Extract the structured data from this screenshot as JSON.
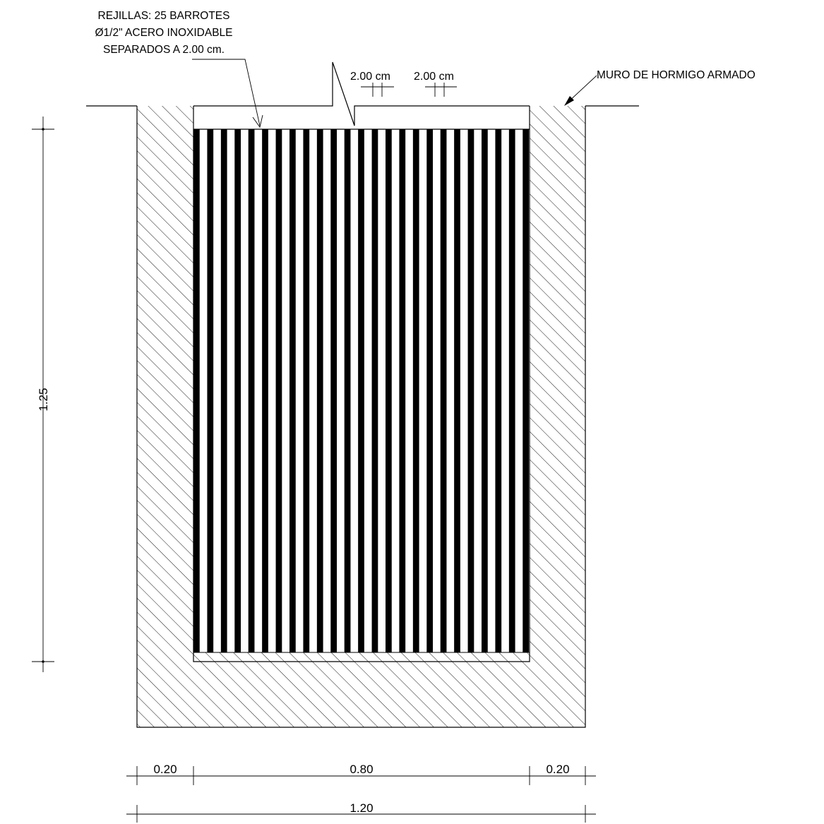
{
  "annotations": {
    "grate_note": [
      "REJILLAS: 25 BARROTES",
      "Ø1/2\" ACERO INOXIDABLE",
      "SEPARADOS A 2.00 cm."
    ],
    "wall_note": "MURO DE HORMIGO ARMADO",
    "spacing_label_1": "2.00 cm",
    "spacing_label_2": "2.00 cm"
  },
  "dimensions": {
    "height": "1.25",
    "left_wall": "0.20",
    "inner_width": "0.80",
    "right_wall": "0.20",
    "total_width": "1.20"
  },
  "grate": {
    "bar_count": 25
  }
}
